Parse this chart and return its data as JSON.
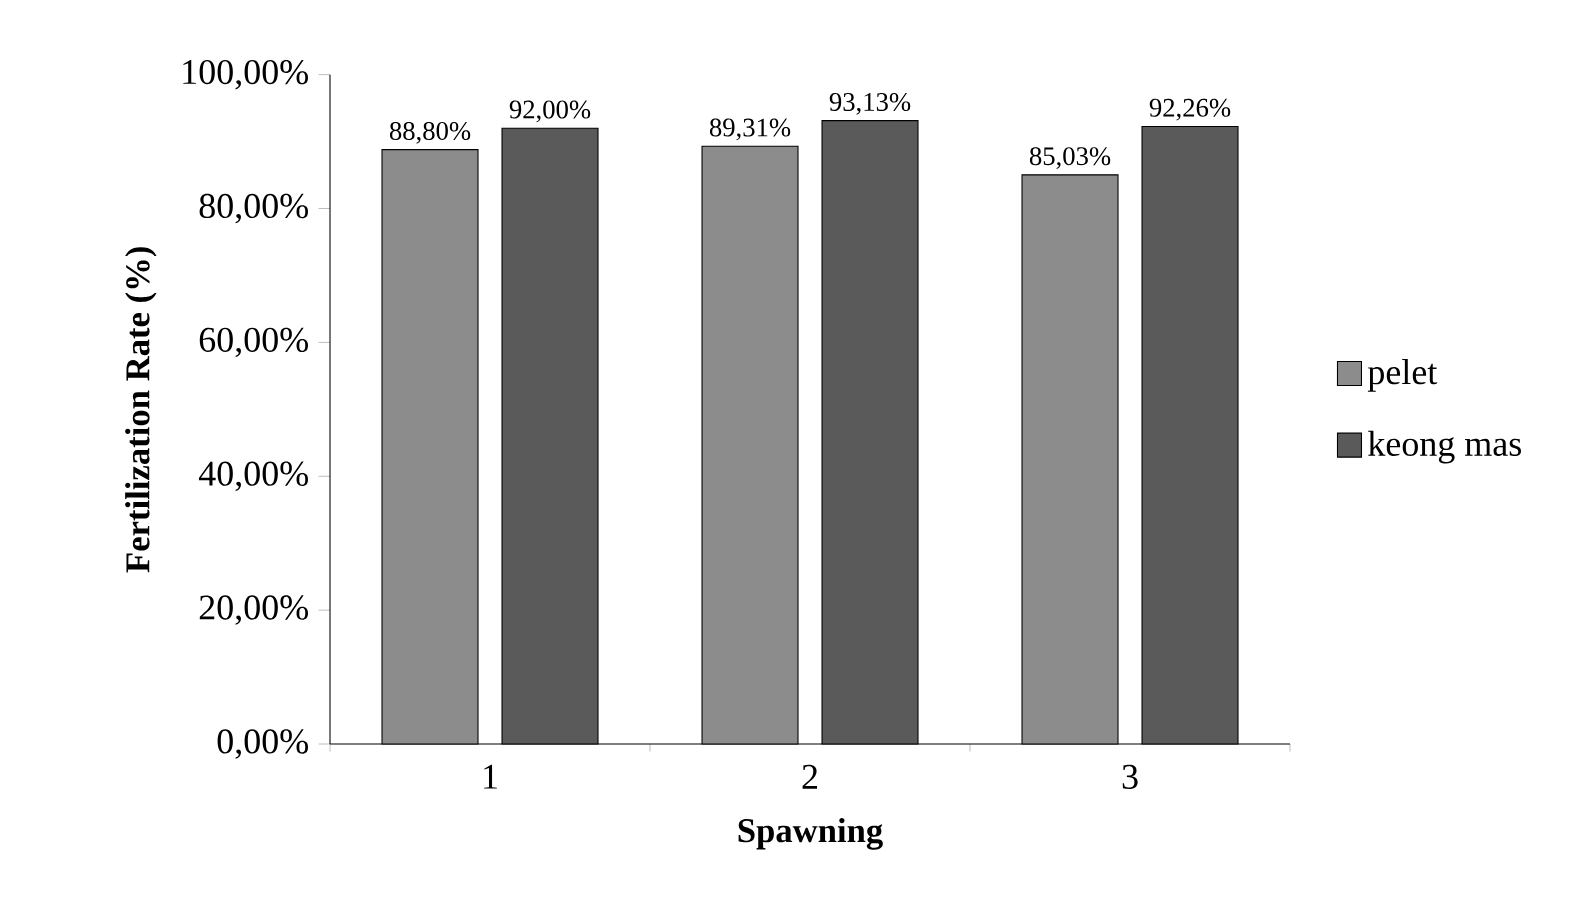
{
  "chart_data": {
    "type": "bar",
    "xlabel": "Spawning",
    "ylabel": "Fertilization Rate  (%)",
    "categories": [
      "1",
      "2",
      "3"
    ],
    "series": [
      {
        "name": "pelet",
        "color": "#8c8c8c",
        "values": [
          88.8,
          89.31,
          85.03
        ],
        "value_labels": [
          "88,80%",
          "89,31%",
          "85,03%"
        ]
      },
      {
        "name": "keong mas",
        "color": "#5a5a5a",
        "values": [
          92.0,
          93.13,
          92.26
        ],
        "value_labels": [
          "92,00%",
          "93,13%",
          "92,26%"
        ]
      }
    ],
    "ylim": [
      0,
      100
    ],
    "yticks": [
      {
        "value": 0,
        "label": "0,00%"
      },
      {
        "value": 20,
        "label": "20,00%"
      },
      {
        "value": 40,
        "label": "40,00%"
      },
      {
        "value": 60,
        "label": "60,00%"
      },
      {
        "value": 80,
        "label": "80,00%"
      },
      {
        "value": 100,
        "label": "100,00%"
      }
    ],
    "grid": false,
    "legend": "right"
  }
}
